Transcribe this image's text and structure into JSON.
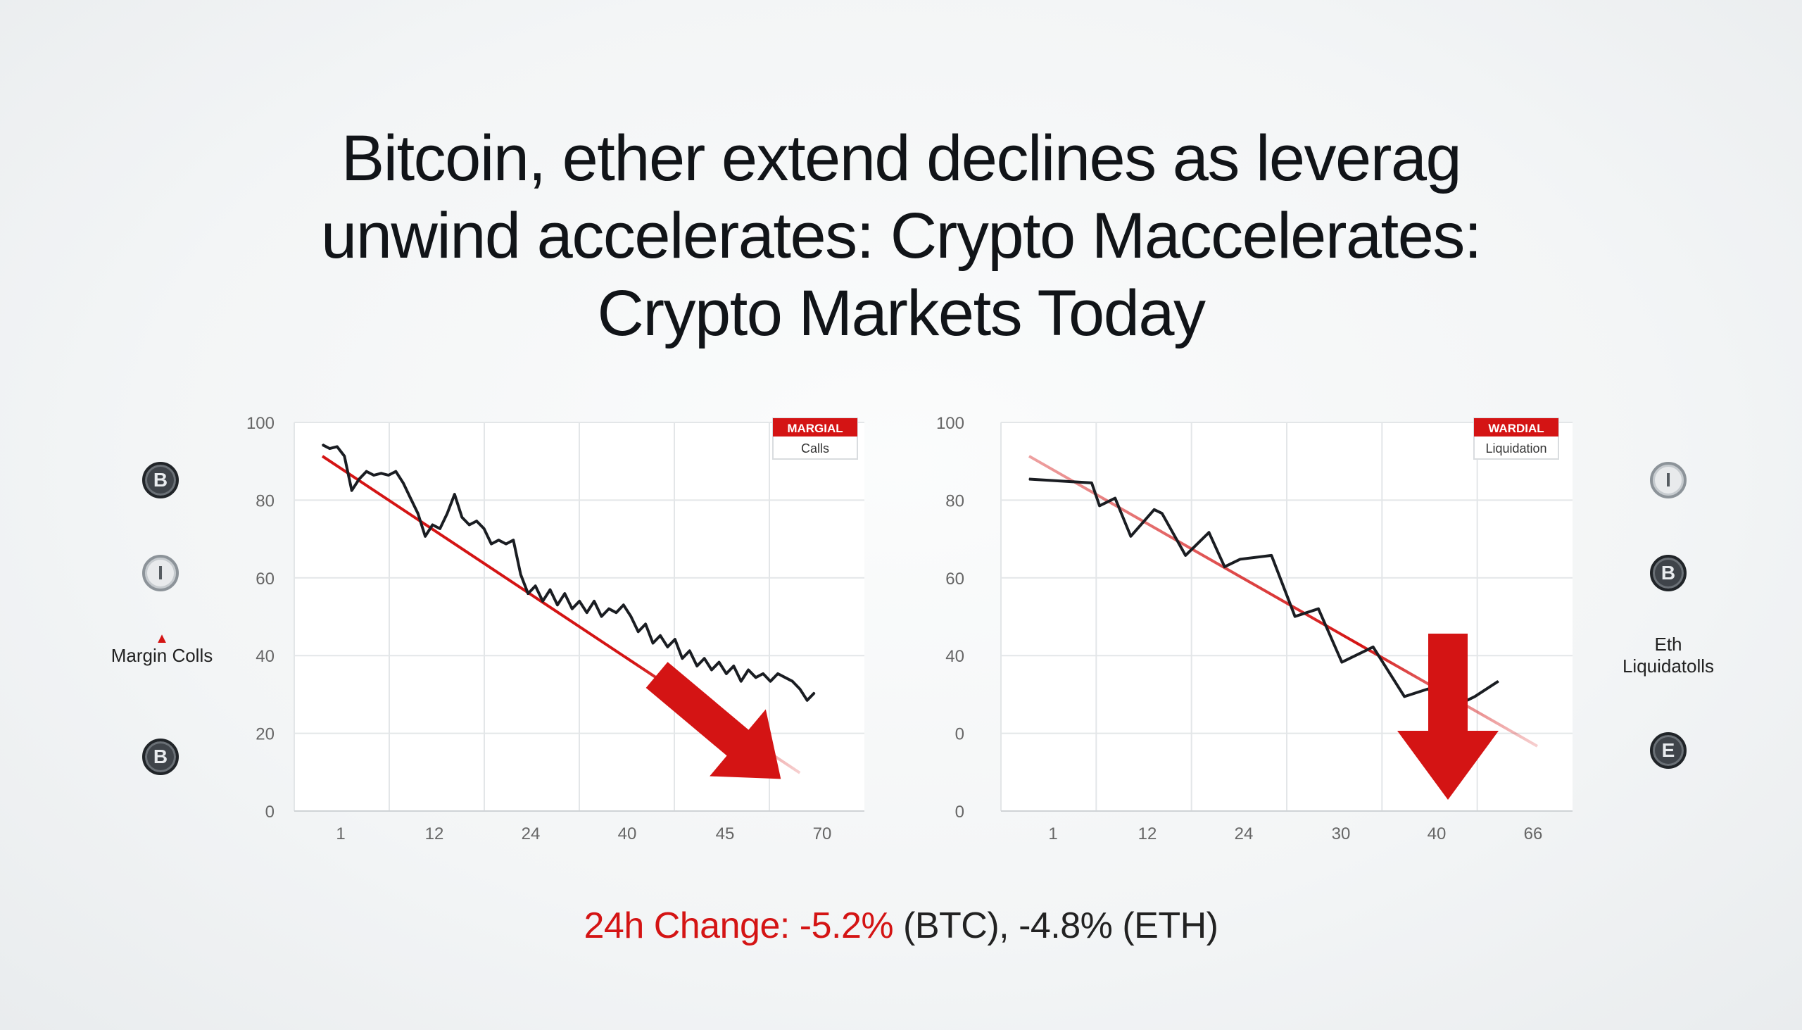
{
  "headline": {
    "line1": "Bitcoin, ether extend declines as leverag",
    "line2": "unwind accelerates: Crypto Maccelerates:",
    "line3": "Crypto Markets Today"
  },
  "colors": {
    "trend_red": "#d41414",
    "line_black": "#1a1d22",
    "grid": "#e3e6e8"
  },
  "side_labels": {
    "left": "Margin Colls",
    "right_line1": "Eth",
    "right_line2": "Liquidatolls"
  },
  "coins": {
    "left": [
      {
        "glyph": "B",
        "style": "dark"
      },
      {
        "glyph": "I",
        "style": "light"
      },
      {
        "glyph": "B",
        "style": "dark"
      }
    ],
    "right": [
      {
        "glyph": "I",
        "style": "light"
      },
      {
        "glyph": "B",
        "style": "dark"
      },
      {
        "glyph": "E",
        "style": "dark"
      }
    ]
  },
  "footer": {
    "red_part": "24h Change: -5.2%",
    "rest": " (BTC), -4.8% (ETH)"
  },
  "chart_data": [
    {
      "type": "line",
      "title": "",
      "badge_top": "MARGIAL",
      "badge_bottom": "Calls",
      "x_tick_labels": [
        "1",
        "12",
        "24",
        "40",
        "45",
        "70"
      ],
      "y_tick_labels": [
        "100",
        "80",
        "60",
        "40",
        "20",
        "0"
      ],
      "ylim": [
        0,
        100
      ],
      "x_range": [
        1,
        70
      ],
      "grid": true,
      "series": [
        {
          "values": [
            {
              "x": 1,
              "y": 96
            },
            {
              "x": 2,
              "y": 95
            },
            {
              "x": 3,
              "y": 95.5
            },
            {
              "x": 4,
              "y": 93
            },
            {
              "x": 5,
              "y": 84
            },
            {
              "x": 6,
              "y": 87
            },
            {
              "x": 7,
              "y": 89
            },
            {
              "x": 8,
              "y": 88
            },
            {
              "x": 9,
              "y": 88.5
            },
            {
              "x": 10,
              "y": 88
            },
            {
              "x": 11,
              "y": 89
            },
            {
              "x": 12,
              "y": 86
            },
            {
              "x": 13,
              "y": 82
            },
            {
              "x": 14,
              "y": 78
            },
            {
              "x": 15,
              "y": 72
            },
            {
              "x": 16,
              "y": 75
            },
            {
              "x": 17,
              "y": 74
            },
            {
              "x": 18,
              "y": 78
            },
            {
              "x": 19,
              "y": 83
            },
            {
              "x": 20,
              "y": 77
            },
            {
              "x": 21,
              "y": 75
            },
            {
              "x": 22,
              "y": 76
            },
            {
              "x": 23,
              "y": 74
            },
            {
              "x": 24,
              "y": 70
            },
            {
              "x": 25,
              "y": 71
            },
            {
              "x": 26,
              "y": 70
            },
            {
              "x": 27,
              "y": 71
            },
            {
              "x": 28,
              "y": 62
            },
            {
              "x": 29,
              "y": 57
            },
            {
              "x": 30,
              "y": 59
            },
            {
              "x": 31,
              "y": 55
            },
            {
              "x": 32,
              "y": 58
            },
            {
              "x": 33,
              "y": 54
            },
            {
              "x": 34,
              "y": 57
            },
            {
              "x": 35,
              "y": 53
            },
            {
              "x": 36,
              "y": 55
            },
            {
              "x": 37,
              "y": 52
            },
            {
              "x": 38,
              "y": 55
            },
            {
              "x": 39,
              "y": 51
            },
            {
              "x": 40,
              "y": 53
            },
            {
              "x": 41,
              "y": 52
            },
            {
              "x": 42,
              "y": 54
            },
            {
              "x": 43,
              "y": 51
            },
            {
              "x": 44,
              "y": 47
            },
            {
              "x": 45,
              "y": 49
            },
            {
              "x": 46,
              "y": 44
            },
            {
              "x": 47,
              "y": 46
            },
            {
              "x": 48,
              "y": 43
            },
            {
              "x": 49,
              "y": 45
            },
            {
              "x": 50,
              "y": 40
            },
            {
              "x": 51,
              "y": 42
            },
            {
              "x": 52,
              "y": 38
            },
            {
              "x": 53,
              "y": 40
            },
            {
              "x": 54,
              "y": 37
            },
            {
              "x": 55,
              "y": 39
            },
            {
              "x": 56,
              "y": 36
            },
            {
              "x": 57,
              "y": 38
            },
            {
              "x": 58,
              "y": 34
            },
            {
              "x": 59,
              "y": 37
            },
            {
              "x": 60,
              "y": 35
            },
            {
              "x": 61,
              "y": 36
            },
            {
              "x": 62,
              "y": 34
            },
            {
              "x": 63,
              "y": 36
            },
            {
              "x": 64,
              "y": 35
            },
            {
              "x": 65,
              "y": 34
            },
            {
              "x": 66,
              "y": 32
            },
            {
              "x": 67,
              "y": 29
            },
            {
              "x": 68,
              "y": 31
            }
          ]
        }
      ],
      "trendline": {
        "from": {
          "x": 1,
          "y": 93
        },
        "to": {
          "x": 66,
          "y": 10
        }
      },
      "arrow": "down-right"
    },
    {
      "type": "line",
      "title": "",
      "badge_top": "WARDIAL",
      "badge_bottom": "Liquidation",
      "x_tick_labels": [
        "1",
        "12",
        "24",
        "30",
        "40",
        "66"
      ],
      "y_tick_labels": [
        "100",
        "80",
        "60",
        "40",
        "0",
        "0"
      ],
      "ylim": [
        0,
        100
      ],
      "x_range": [
        1,
        66
      ],
      "grid": true,
      "series": [
        {
          "values": [
            {
              "x": 1,
              "y": 87
            },
            {
              "x": 9,
              "y": 86
            },
            {
              "x": 10,
              "y": 80
            },
            {
              "x": 12,
              "y": 82
            },
            {
              "x": 14,
              "y": 72
            },
            {
              "x": 17,
              "y": 79
            },
            {
              "x": 18,
              "y": 78
            },
            {
              "x": 21,
              "y": 67
            },
            {
              "x": 24,
              "y": 73
            },
            {
              "x": 26,
              "y": 64
            },
            {
              "x": 28,
              "y": 66
            },
            {
              "x": 32,
              "y": 67
            },
            {
              "x": 35,
              "y": 51
            },
            {
              "x": 38,
              "y": 53
            },
            {
              "x": 41,
              "y": 39
            },
            {
              "x": 45,
              "y": 43
            },
            {
              "x": 49,
              "y": 30
            },
            {
              "x": 52,
              "y": 32
            },
            {
              "x": 55,
              "y": 27
            },
            {
              "x": 58,
              "y": 30
            },
            {
              "x": 61,
              "y": 34
            }
          ]
        }
      ],
      "trendline": {
        "from": {
          "x": 1,
          "y": 93
        },
        "to": {
          "x": 66,
          "y": 17
        }
      },
      "arrow": "down"
    }
  ]
}
